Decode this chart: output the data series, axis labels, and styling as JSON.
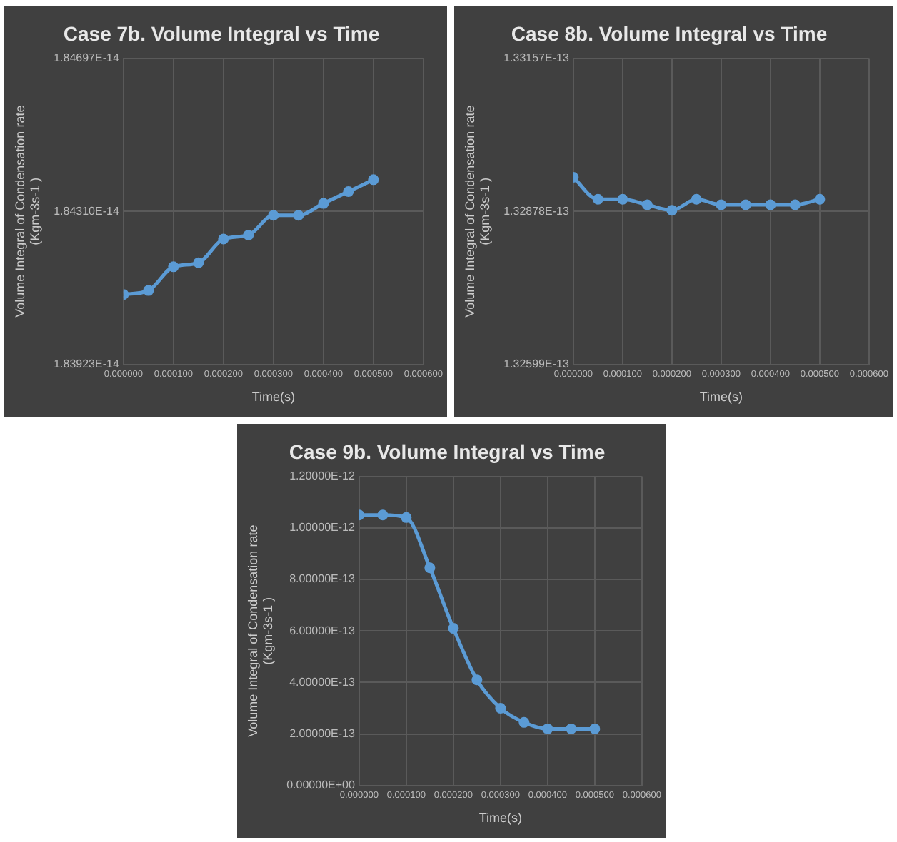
{
  "chart_data": [
    {
      "type": "line",
      "title": "Case 7b. Volume Integral vs Time",
      "xlabel": "Time(s)",
      "ylabel": "Volume Integral of Condensation rate (Kgm-3s-1 )",
      "x": [
        0,
        5e-05,
        0.0001,
        0.00015,
        0.0002,
        0.00025,
        0.0003,
        0.00035,
        0.0004,
        0.00045,
        0.0005
      ],
      "series": [
        {
          "color": "#5b9bd5",
          "values": [
            1.841e-14,
            1.8411e-14,
            1.8417e-14,
            1.8418e-14,
            1.8424e-14,
            1.8425e-14,
            1.843e-14,
            1.843e-14,
            1.8433e-14,
            1.8436e-14,
            1.8439e-14
          ]
        }
      ],
      "xlim": [
        0,
        0.0006
      ],
      "xticks": [
        {
          "value": 0,
          "label": "0.000000"
        },
        {
          "value": 0.0001,
          "label": "0.000100"
        },
        {
          "value": 0.0002,
          "label": "0.000200"
        },
        {
          "value": 0.0003,
          "label": "0.000300"
        },
        {
          "value": 0.0004,
          "label": "0.000400"
        },
        {
          "value": 0.0005,
          "label": "0.000500"
        },
        {
          "value": 0.0006,
          "label": "0.000600"
        }
      ],
      "ylim": [
        1.83923e-14,
        1.84697e-14
      ],
      "yticks": [
        {
          "value": 1.83923e-14,
          "label": "1.83923E-14"
        },
        {
          "value": 1.8431e-14,
          "label": "1.84310E-14"
        },
        {
          "value": 1.84697e-14,
          "label": "1.84697E-14"
        }
      ],
      "grid": true,
      "legend": false,
      "marker": "circle",
      "line_style": "solid"
    },
    {
      "type": "line",
      "title": "Case 8b. Volume Integral vs Time",
      "xlabel": "Time(s)",
      "ylabel": "Volume Integral of Condensation rate (Kgm-3s-1 )",
      "x": [
        0,
        5e-05,
        0.0001,
        0.00015,
        0.0002,
        0.00025,
        0.0003,
        0.00035,
        0.0004,
        0.00045,
        0.0005
      ],
      "series": [
        {
          "color": "#5b9bd5",
          "values": [
            1.3294e-13,
            1.329e-13,
            1.329e-13,
            1.3289e-13,
            1.3288e-13,
            1.329e-13,
            1.3289e-13,
            1.3289e-13,
            1.3289e-13,
            1.3289e-13,
            1.329e-13
          ]
        }
      ],
      "xlim": [
        0,
        0.0006
      ],
      "xticks": [
        {
          "value": 0,
          "label": "0.000000"
        },
        {
          "value": 0.0001,
          "label": "0.000100"
        },
        {
          "value": 0.0002,
          "label": "0.000200"
        },
        {
          "value": 0.0003,
          "label": "0.000300"
        },
        {
          "value": 0.0004,
          "label": "0.000400"
        },
        {
          "value": 0.0005,
          "label": "0.000500"
        },
        {
          "value": 0.0006,
          "label": "0.000600"
        }
      ],
      "ylim": [
        1.32599e-13,
        1.33157e-13
      ],
      "yticks": [
        {
          "value": 1.32599e-13,
          "label": "1.32599E-13"
        },
        {
          "value": 1.32878e-13,
          "label": "1.32878E-13"
        },
        {
          "value": 1.33157e-13,
          "label": "1.33157E-13"
        }
      ],
      "grid": true,
      "legend": false,
      "marker": "circle",
      "line_style": "solid"
    },
    {
      "type": "line",
      "title": "Case 9b. Volume Integral vs Time",
      "xlabel": "Time(s)",
      "ylabel": "Volume Integral of Condensation rate (Kgm-3s-1 )",
      "x": [
        0,
        5e-05,
        0.0001,
        0.00015,
        0.0002,
        0.00025,
        0.0003,
        0.00035,
        0.0004,
        0.00045,
        0.0005
      ],
      "series": [
        {
          "color": "#5b9bd5",
          "values": [
            1.05e-12,
            1.05e-12,
            1.04e-12,
            8.45e-13,
            6.1e-13,
            4.1e-13,
            3e-13,
            2.45e-13,
            2.2e-13,
            2.2e-13,
            2.2e-13
          ]
        }
      ],
      "xlim": [
        0,
        0.0006
      ],
      "xticks": [
        {
          "value": 0,
          "label": "0.000000"
        },
        {
          "value": 0.0001,
          "label": "0.000100"
        },
        {
          "value": 0.0002,
          "label": "0.000200"
        },
        {
          "value": 0.0003,
          "label": "0.000300"
        },
        {
          "value": 0.0004,
          "label": "0.000400"
        },
        {
          "value": 0.0005,
          "label": "0.000500"
        },
        {
          "value": 0.0006,
          "label": "0.000600"
        }
      ],
      "ylim": [
        0,
        1.2e-12
      ],
      "yticks": [
        {
          "value": 0,
          "label": "0.00000E+00"
        },
        {
          "value": 2e-13,
          "label": "2.00000E-13"
        },
        {
          "value": 4e-13,
          "label": "4.00000E-13"
        },
        {
          "value": 6e-13,
          "label": "6.00000E-13"
        },
        {
          "value": 8e-13,
          "label": "8.00000E-13"
        },
        {
          "value": 1e-12,
          "label": "1.00000E-12"
        },
        {
          "value": 1.2e-12,
          "label": "1.20000E-12"
        }
      ],
      "grid": true,
      "legend": false,
      "marker": "circle",
      "line_style": "solid"
    }
  ]
}
